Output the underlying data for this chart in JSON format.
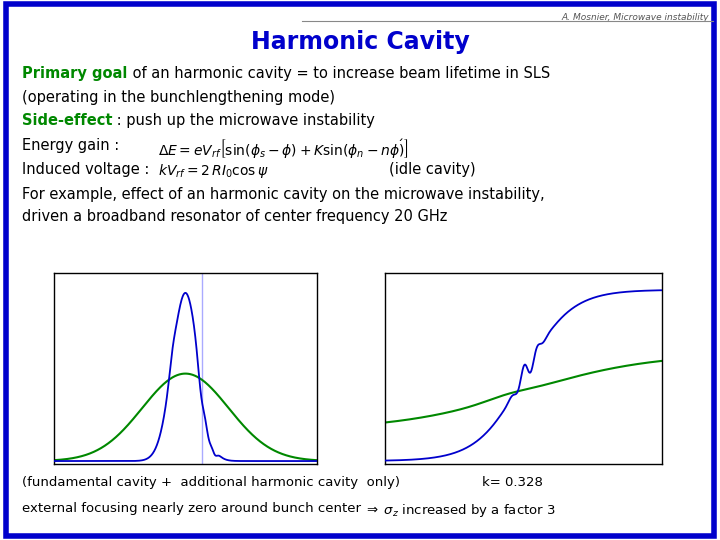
{
  "title": "Harmonic Cavity",
  "header_text": "A. Mosnier, Microwave instability",
  "bg_color": "#ffffff",
  "border_color": "#0000cc",
  "title_color": "#0000cc",
  "green_color": "#008800",
  "black_color": "#000000",
  "gray_color": "#666666",
  "line1_bold": "Primary goal",
  "line1_rest": " of an harmonic cavity = to increase beam lifetime in SLS",
  "line2": "(operating in the bunchlengthening mode)",
  "line3_bold": "Side-effect",
  "line3_rest": " : push up the microwave instability",
  "line4_label": "Energy gain :",
  "line5_label": "Induced voltage :",
  "line5_note": "(idle cavity)",
  "line6": "For example, effect of an harmonic cavity on the microwave instability,",
  "line7": "driven a broadband resonator of center frequency 20 GHz",
  "caption1": "(fundamental cavity +  additional harmonic cavity  only)",
  "caption2": "k= 0.328",
  "caption3": "external focusing nearly zero around bunch center",
  "caption4": " increased by a factor 3"
}
